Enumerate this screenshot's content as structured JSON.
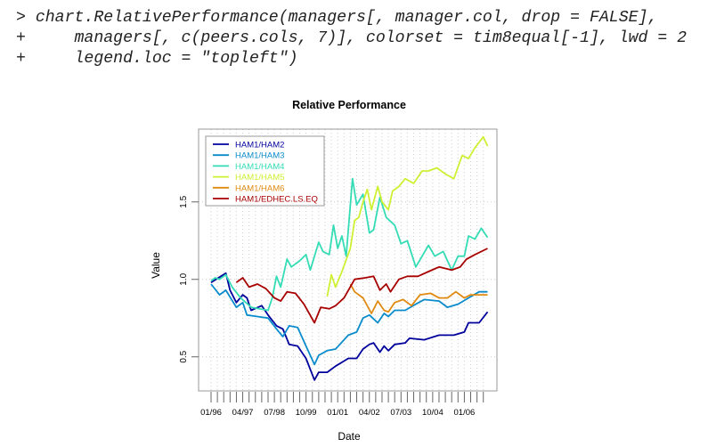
{
  "console": {
    "lines": [
      {
        "prompt": ">",
        "text": "chart.RelativePerformance(managers[, manager.col, drop = FALSE],"
      },
      {
        "prompt": "+",
        "text": "    managers[, c(peers.cols, 7)], colorset = tim8equal[-1], lwd = 2"
      },
      {
        "prompt": "+",
        "text": "    legend.loc = \"topleft\")"
      }
    ]
  },
  "chart_data": {
    "type": "line",
    "title": "Relative Performance",
    "xlabel": "Date",
    "ylabel": "Value",
    "xlim": [
      "1996-01",
      "2006-12"
    ],
    "ylim": [
      0.28,
      1.97
    ],
    "x_tick_labels": [
      "01/96",
      "04/97",
      "07/98",
      "10/99",
      "01/01",
      "04/02",
      "07/03",
      "10/04",
      "01/06"
    ],
    "x_tick_dates": [
      "1996-01",
      "1997-04",
      "1998-07",
      "1999-10",
      "2001-01",
      "2002-04",
      "2003-07",
      "2004-10",
      "2006-01"
    ],
    "y_ticks": [
      0.5,
      1.0,
      1.5
    ],
    "y_tick_labels": [
      "0.5",
      "1.0",
      "1.5"
    ],
    "grid": true,
    "legend_position": "top-left",
    "series": [
      {
        "name": "HAM1/HAM2",
        "color": "#00009c",
        "points": [
          [
            "1996-01",
            0.98
          ],
          [
            "1996-08",
            1.04
          ],
          [
            "1996-10",
            0.93
          ],
          [
            "1997-01",
            0.85
          ],
          [
            "1997-04",
            0.9
          ],
          [
            "1997-06",
            0.88
          ],
          [
            "1997-08",
            0.8
          ],
          [
            "1998-01",
            0.83
          ],
          [
            "1998-04",
            0.77
          ],
          [
            "1998-08",
            0.7
          ],
          [
            "1998-11",
            0.68
          ],
          [
            "1999-02",
            0.58
          ],
          [
            "1999-06",
            0.57
          ],
          [
            "1999-10",
            0.49
          ],
          [
            "2000-02",
            0.35
          ],
          [
            "2000-04",
            0.4
          ],
          [
            "2000-08",
            0.4
          ],
          [
            "2000-12",
            0.44
          ],
          [
            "2001-06",
            0.49
          ],
          [
            "2001-10",
            0.49
          ],
          [
            "2002-01",
            0.55
          ],
          [
            "2002-04",
            0.58
          ],
          [
            "2002-06",
            0.59
          ],
          [
            "2002-09",
            0.53
          ],
          [
            "2002-11",
            0.57
          ],
          [
            "2003-01",
            0.54
          ],
          [
            "2003-04",
            0.58
          ],
          [
            "2003-09",
            0.59
          ],
          [
            "2003-11",
            0.62
          ],
          [
            "2004-06",
            0.61
          ],
          [
            "2005-01",
            0.64
          ],
          [
            "2005-08",
            0.64
          ],
          [
            "2006-01",
            0.66
          ],
          [
            "2006-03",
            0.72
          ],
          [
            "2006-08",
            0.72
          ],
          [
            "2006-12",
            0.79
          ]
        ]
      },
      {
        "name": "HAM1/HAM3",
        "color": "#0a8ccc",
        "points": [
          [
            "1996-01",
            0.97
          ],
          [
            "1996-05",
            0.9
          ],
          [
            "1996-08",
            0.93
          ],
          [
            "1997-01",
            0.82
          ],
          [
            "1997-04",
            0.85
          ],
          [
            "1997-06",
            0.77
          ],
          [
            "1997-11",
            0.76
          ],
          [
            "1998-04",
            0.75
          ],
          [
            "1998-08",
            0.68
          ],
          [
            "1998-11",
            0.63
          ],
          [
            "1999-02",
            0.7
          ],
          [
            "1999-06",
            0.69
          ],
          [
            "1999-10",
            0.57
          ],
          [
            "2000-02",
            0.45
          ],
          [
            "2000-04",
            0.51
          ],
          [
            "2000-08",
            0.54
          ],
          [
            "2000-12",
            0.55
          ],
          [
            "2001-06",
            0.64
          ],
          [
            "2001-10",
            0.66
          ],
          [
            "2002-01",
            0.75
          ],
          [
            "2002-04",
            0.77
          ],
          [
            "2002-08",
            0.72
          ],
          [
            "2002-11",
            0.78
          ],
          [
            "2003-01",
            0.76
          ],
          [
            "2003-04",
            0.8
          ],
          [
            "2003-09",
            0.8
          ],
          [
            "2004-02",
            0.84
          ],
          [
            "2004-06",
            0.87
          ],
          [
            "2005-01",
            0.86
          ],
          [
            "2005-05",
            0.82
          ],
          [
            "2005-10",
            0.84
          ],
          [
            "2006-03",
            0.88
          ],
          [
            "2006-08",
            0.92
          ],
          [
            "2006-12",
            0.92
          ]
        ]
      },
      {
        "name": "HAM1/HAM4",
        "color": "#33dcb4",
        "points": [
          [
            "1996-01",
            0.99
          ],
          [
            "1996-03",
            1.01
          ],
          [
            "1996-05",
            1.0
          ],
          [
            "1996-08",
            1.03
          ],
          [
            "1996-11",
            0.95
          ],
          [
            "1997-03",
            0.88
          ],
          [
            "1997-08",
            0.82
          ],
          [
            "1998-04",
            0.8
          ],
          [
            "1998-06",
            0.88
          ],
          [
            "1998-08",
            1.02
          ],
          [
            "1998-10",
            0.95
          ],
          [
            "1999-01",
            1.13
          ],
          [
            "1999-03",
            1.08
          ],
          [
            "1999-07",
            1.12
          ],
          [
            "1999-10",
            1.16
          ],
          [
            "1999-12",
            1.06
          ],
          [
            "2000-04",
            1.24
          ],
          [
            "2000-06",
            1.18
          ],
          [
            "2000-09",
            1.16
          ],
          [
            "2000-11",
            1.35
          ],
          [
            "2001-01",
            1.2
          ],
          [
            "2001-03",
            1.28
          ],
          [
            "2001-05",
            1.15
          ],
          [
            "2001-08",
            1.65
          ],
          [
            "2001-10",
            1.48
          ],
          [
            "2002-01",
            1.55
          ],
          [
            "2002-04",
            1.3
          ],
          [
            "2002-06",
            1.32
          ],
          [
            "2002-09",
            1.53
          ],
          [
            "2002-12",
            1.4
          ],
          [
            "2003-04",
            1.35
          ],
          [
            "2003-07",
            1.23
          ],
          [
            "2003-10",
            1.25
          ],
          [
            "2004-02",
            1.08
          ],
          [
            "2004-05",
            1.15
          ],
          [
            "2004-08",
            1.22
          ],
          [
            "2004-11",
            1.15
          ],
          [
            "2005-03",
            1.18
          ],
          [
            "2005-07",
            1.06
          ],
          [
            "2005-10",
            1.15
          ],
          [
            "2006-01",
            1.15
          ],
          [
            "2006-03",
            1.28
          ],
          [
            "2006-06",
            1.26
          ],
          [
            "2006-09",
            1.33
          ],
          [
            "2006-12",
            1.27
          ]
        ]
      },
      {
        "name": "HAM1/HAM5",
        "color": "#cdf032",
        "points": [
          [
            "2000-08",
            0.89
          ],
          [
            "2000-10",
            1.03
          ],
          [
            "2000-12",
            0.95
          ],
          [
            "2001-03",
            1.05
          ],
          [
            "2001-07",
            1.2
          ],
          [
            "2001-09",
            1.38
          ],
          [
            "2001-11",
            1.4
          ],
          [
            "2002-01",
            1.5
          ],
          [
            "2002-03",
            1.58
          ],
          [
            "2002-05",
            1.45
          ],
          [
            "2002-08",
            1.6
          ],
          [
            "2002-10",
            1.5
          ],
          [
            "2003-01",
            1.45
          ],
          [
            "2003-03",
            1.57
          ],
          [
            "2003-06",
            1.6
          ],
          [
            "2003-09",
            1.65
          ],
          [
            "2004-01",
            1.62
          ],
          [
            "2004-05",
            1.7
          ],
          [
            "2004-08",
            1.7
          ],
          [
            "2004-12",
            1.72
          ],
          [
            "2005-04",
            1.68
          ],
          [
            "2005-08",
            1.65
          ],
          [
            "2005-12",
            1.8
          ],
          [
            "2006-03",
            1.78
          ],
          [
            "2006-06",
            1.85
          ],
          [
            "2006-10",
            1.92
          ],
          [
            "2006-12",
            1.86
          ]
        ]
      },
      {
        "name": "HAM1/HAM6",
        "color": "#e08a10",
        "points": [
          [
            "2001-07",
            0.97
          ],
          [
            "2001-09",
            0.92
          ],
          [
            "2002-01",
            0.88
          ],
          [
            "2002-05",
            0.78
          ],
          [
            "2002-08",
            0.86
          ],
          [
            "2002-11",
            0.8
          ],
          [
            "2003-01",
            0.79
          ],
          [
            "2003-04",
            0.85
          ],
          [
            "2003-08",
            0.87
          ],
          [
            "2003-12",
            0.83
          ],
          [
            "2004-04",
            0.9
          ],
          [
            "2004-09",
            0.91
          ],
          [
            "2005-01",
            0.88
          ],
          [
            "2005-05",
            0.88
          ],
          [
            "2005-09",
            0.92
          ],
          [
            "2006-01",
            0.88
          ],
          [
            "2006-04",
            0.9
          ],
          [
            "2006-08",
            0.9
          ],
          [
            "2006-12",
            0.9
          ]
        ]
      },
      {
        "name": "HAM1/EDHEC.LS.EQ",
        "color": "#a80000",
        "points": [
          [
            "1997-01",
            0.98
          ],
          [
            "1997-04",
            1.01
          ],
          [
            "1997-07",
            0.95
          ],
          [
            "1997-11",
            0.97
          ],
          [
            "1998-03",
            0.94
          ],
          [
            "1998-07",
            0.88
          ],
          [
            "1998-10",
            0.86
          ],
          [
            "1999-01",
            0.92
          ],
          [
            "1999-05",
            0.91
          ],
          [
            "1999-09",
            0.84
          ],
          [
            "2000-02",
            0.72
          ],
          [
            "2000-05",
            0.82
          ],
          [
            "2000-09",
            0.81
          ],
          [
            "2000-12",
            0.83
          ],
          [
            "2001-04",
            0.88
          ],
          [
            "2001-09",
            1.0
          ],
          [
            "2002-02",
            1.01
          ],
          [
            "2002-06",
            1.02
          ],
          [
            "2002-09",
            0.93
          ],
          [
            "2002-12",
            0.97
          ],
          [
            "2003-02",
            0.92
          ],
          [
            "2003-06",
            1.0
          ],
          [
            "2003-10",
            1.02
          ],
          [
            "2004-03",
            1.02
          ],
          [
            "2004-08",
            1.05
          ],
          [
            "2005-01",
            1.08
          ],
          [
            "2005-07",
            1.06
          ],
          [
            "2005-11",
            1.08
          ],
          [
            "2006-02",
            1.13
          ],
          [
            "2006-06",
            1.16
          ],
          [
            "2006-12",
            1.2
          ]
        ]
      }
    ]
  }
}
